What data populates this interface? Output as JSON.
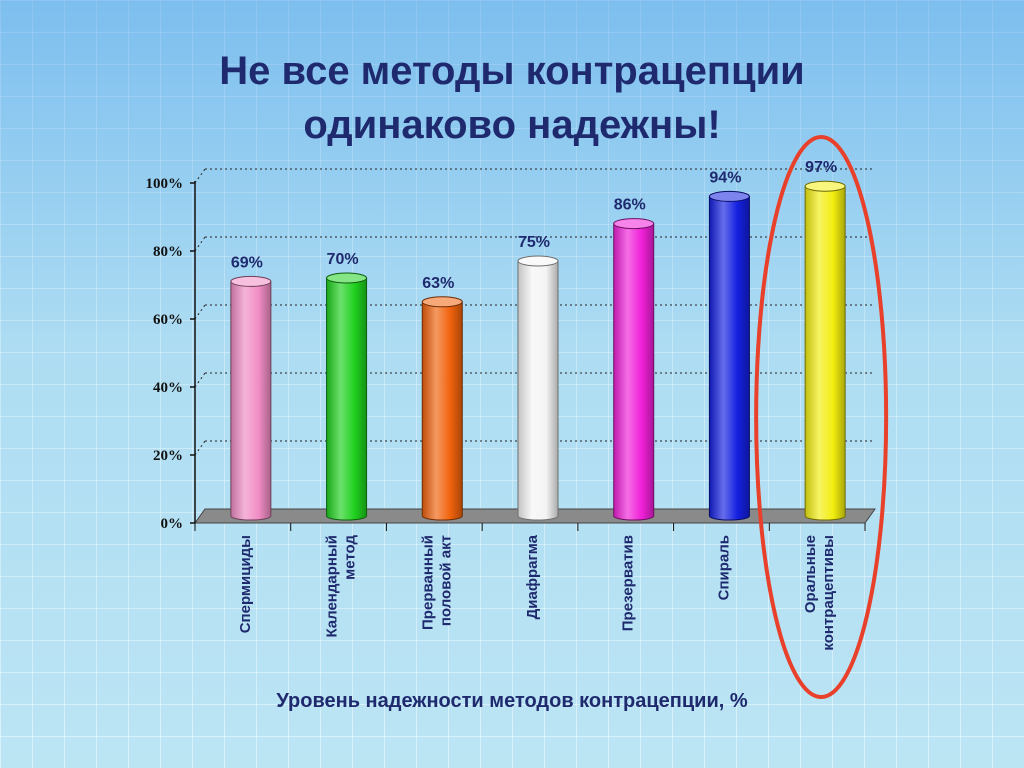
{
  "title": {
    "line1": "Не все методы контрацепции",
    "line2": "одинаково надежны!"
  },
  "chart_data": {
    "type": "bar",
    "categories": [
      [
        "Спермициды"
      ],
      [
        "Календарный",
        "метод"
      ],
      [
        "Прерванный",
        "половой акт"
      ],
      [
        "Диафрагма"
      ],
      [
        "Презерватив"
      ],
      [
        "Спираль"
      ],
      [
        "Оральные",
        "контрацептивы"
      ]
    ],
    "values": [
      69,
      70,
      63,
      75,
      86,
      94,
      97
    ],
    "value_labels": [
      "69%",
      "70%",
      "63%",
      "75%",
      "86%",
      "94%",
      "97%"
    ],
    "colors": [
      "#f08cc4",
      "#1fd11f",
      "#f0620c",
      "#f4f4f4",
      "#f020d8",
      "#1420e0",
      "#f2ee10"
    ],
    "yticks": [
      "0%",
      "20%",
      "40%",
      "60%",
      "80%",
      "100%"
    ],
    "ylim": [
      0,
      100
    ],
    "xlabel": "Уровень надежности методов контрацепции, %",
    "grid": true,
    "highlighted_category": "Оральные контрацептивы",
    "highlight_color": "#e8402a"
  }
}
